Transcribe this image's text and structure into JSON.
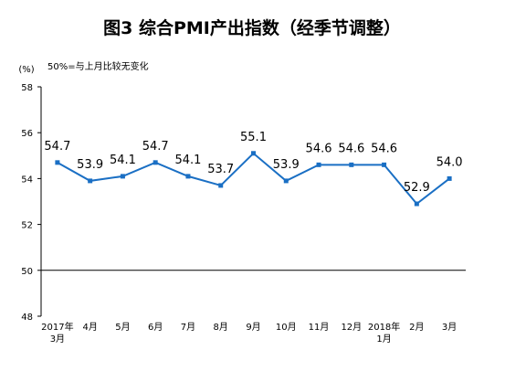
{
  "chart_data": {
    "type": "line",
    "title": "图3  综合PMI产出指数（经季节调整）",
    "ylabel": "(%)",
    "annotation": "50%=与上月比较无变化",
    "ylim": [
      48,
      58
    ],
    "yticks": [
      "48",
      "50",
      "52",
      "54",
      "56",
      "58"
    ],
    "reference_line": 50,
    "categories": [
      [
        "2017年",
        "3月"
      ],
      [
        "4月"
      ],
      [
        "5月"
      ],
      [
        "6月"
      ],
      [
        "7月"
      ],
      [
        "8月"
      ],
      [
        "9月"
      ],
      [
        "10月"
      ],
      [
        "11月"
      ],
      [
        "12月"
      ],
      [
        "2018年",
        "1月"
      ],
      [
        "2月"
      ],
      [
        "3月"
      ]
    ],
    "values": [
      54.7,
      53.9,
      54.1,
      54.7,
      54.1,
      53.7,
      55.1,
      53.9,
      54.6,
      54.6,
      54.6,
      52.9,
      54.0
    ],
    "data_labels": [
      "54.7",
      "53.9",
      "54.1",
      "54.7",
      "54.1",
      "53.7",
      "55.1",
      "53.9",
      "54.6",
      "54.6",
      "54.6",
      "52.9",
      "54.0"
    ],
    "line_color": "#1a6fc4",
    "grid": false,
    "legend": "none"
  }
}
